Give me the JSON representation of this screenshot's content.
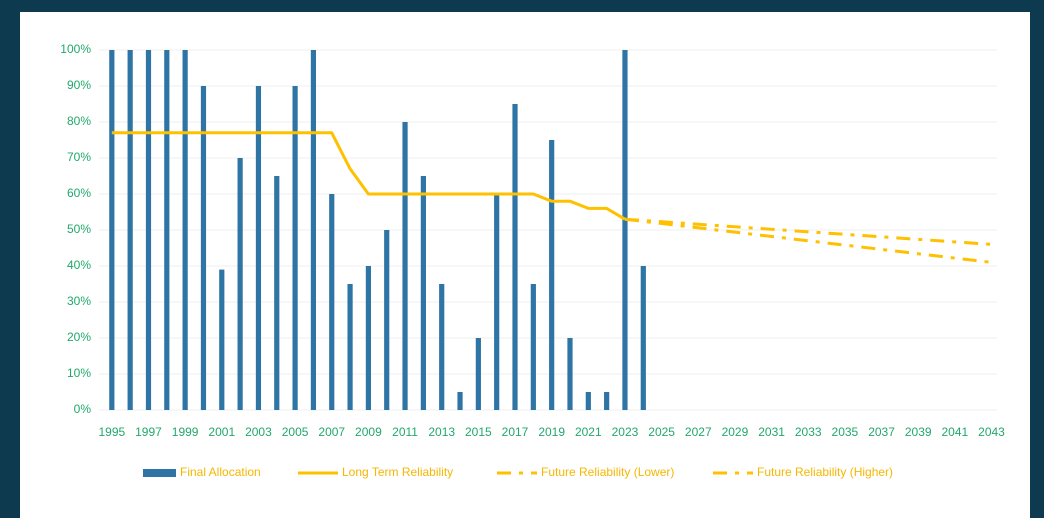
{
  "chart_data": {
    "type": "combo",
    "x": [
      1995,
      1996,
      1997,
      1998,
      1999,
      2000,
      2001,
      2002,
      2003,
      2004,
      2005,
      2006,
      2007,
      2008,
      2009,
      2010,
      2011,
      2012,
      2013,
      2014,
      2015,
      2016,
      2017,
      2018,
      2019,
      2020,
      2021,
      2022,
      2023,
      2024,
      2025,
      2026,
      2027,
      2028,
      2029,
      2030,
      2031,
      2032,
      2033,
      2034,
      2035,
      2036,
      2037,
      2038,
      2039,
      2040,
      2041,
      2042,
      2043
    ],
    "xlim": [
      1994.3,
      2043.3
    ],
    "xticks": [
      1995,
      1997,
      1999,
      2001,
      2003,
      2005,
      2007,
      2009,
      2011,
      2013,
      2015,
      2017,
      2019,
      2021,
      2023,
      2025,
      2027,
      2029,
      2031,
      2033,
      2035,
      2037,
      2039,
      2041,
      2043
    ],
    "ylim": [
      0,
      100
    ],
    "yticks": [
      {
        "value": 0,
        "label": "0%"
      },
      {
        "value": 10,
        "label": "10%"
      },
      {
        "value": 20,
        "label": "20%"
      },
      {
        "value": 30,
        "label": "30%"
      },
      {
        "value": 40,
        "label": "40%"
      },
      {
        "value": 50,
        "label": "50%"
      },
      {
        "value": 60,
        "label": "60%"
      },
      {
        "value": 70,
        "label": "70%"
      },
      {
        "value": 80,
        "label": "80%"
      },
      {
        "value": 90,
        "label": "90%"
      },
      {
        "value": 100,
        "label": "100%"
      }
    ],
    "grid": true,
    "legend": "bottom",
    "series": [
      {
        "name": "Final Allocation",
        "type": "bar",
        "color": "#2e75a6",
        "values": [
          100,
          100,
          100,
          100,
          100,
          90,
          39,
          70,
          90,
          65,
          90,
          100,
          60,
          35,
          40,
          50,
          80,
          65,
          35,
          5,
          20,
          60,
          85,
          35,
          75,
          20,
          5,
          5,
          100,
          40,
          null,
          null,
          null,
          null,
          null,
          null,
          null,
          null,
          null,
          null,
          null,
          null,
          null,
          null,
          null,
          null,
          null,
          null,
          null
        ]
      },
      {
        "name": "Long Term Reliability",
        "type": "line",
        "color": "#ffc000",
        "dash": "none",
        "values": [
          77,
          77,
          77,
          77,
          77,
          77,
          77,
          77,
          77,
          77,
          77,
          77,
          77,
          67,
          60,
          60,
          60,
          60,
          60,
          60,
          60,
          60,
          60,
          60,
          58,
          58,
          56,
          56,
          53,
          null,
          null,
          null,
          null,
          null,
          null,
          null,
          null,
          null,
          null,
          null,
          null,
          null,
          null,
          null,
          null,
          null,
          null,
          null,
          null
        ]
      },
      {
        "name": "Future Reliability (Lower)",
        "type": "line",
        "color": "#ffc000",
        "dash": "14 8 4 8",
        "x": [
          2023,
          2043
        ],
        "values": [
          53,
          41
        ]
      },
      {
        "name": "Future Reliability (Higher)",
        "type": "line",
        "color": "#ffc000",
        "dash": "14 8 4 8",
        "x": [
          2023,
          2043
        ],
        "values": [
          53,
          46
        ]
      }
    ]
  }
}
